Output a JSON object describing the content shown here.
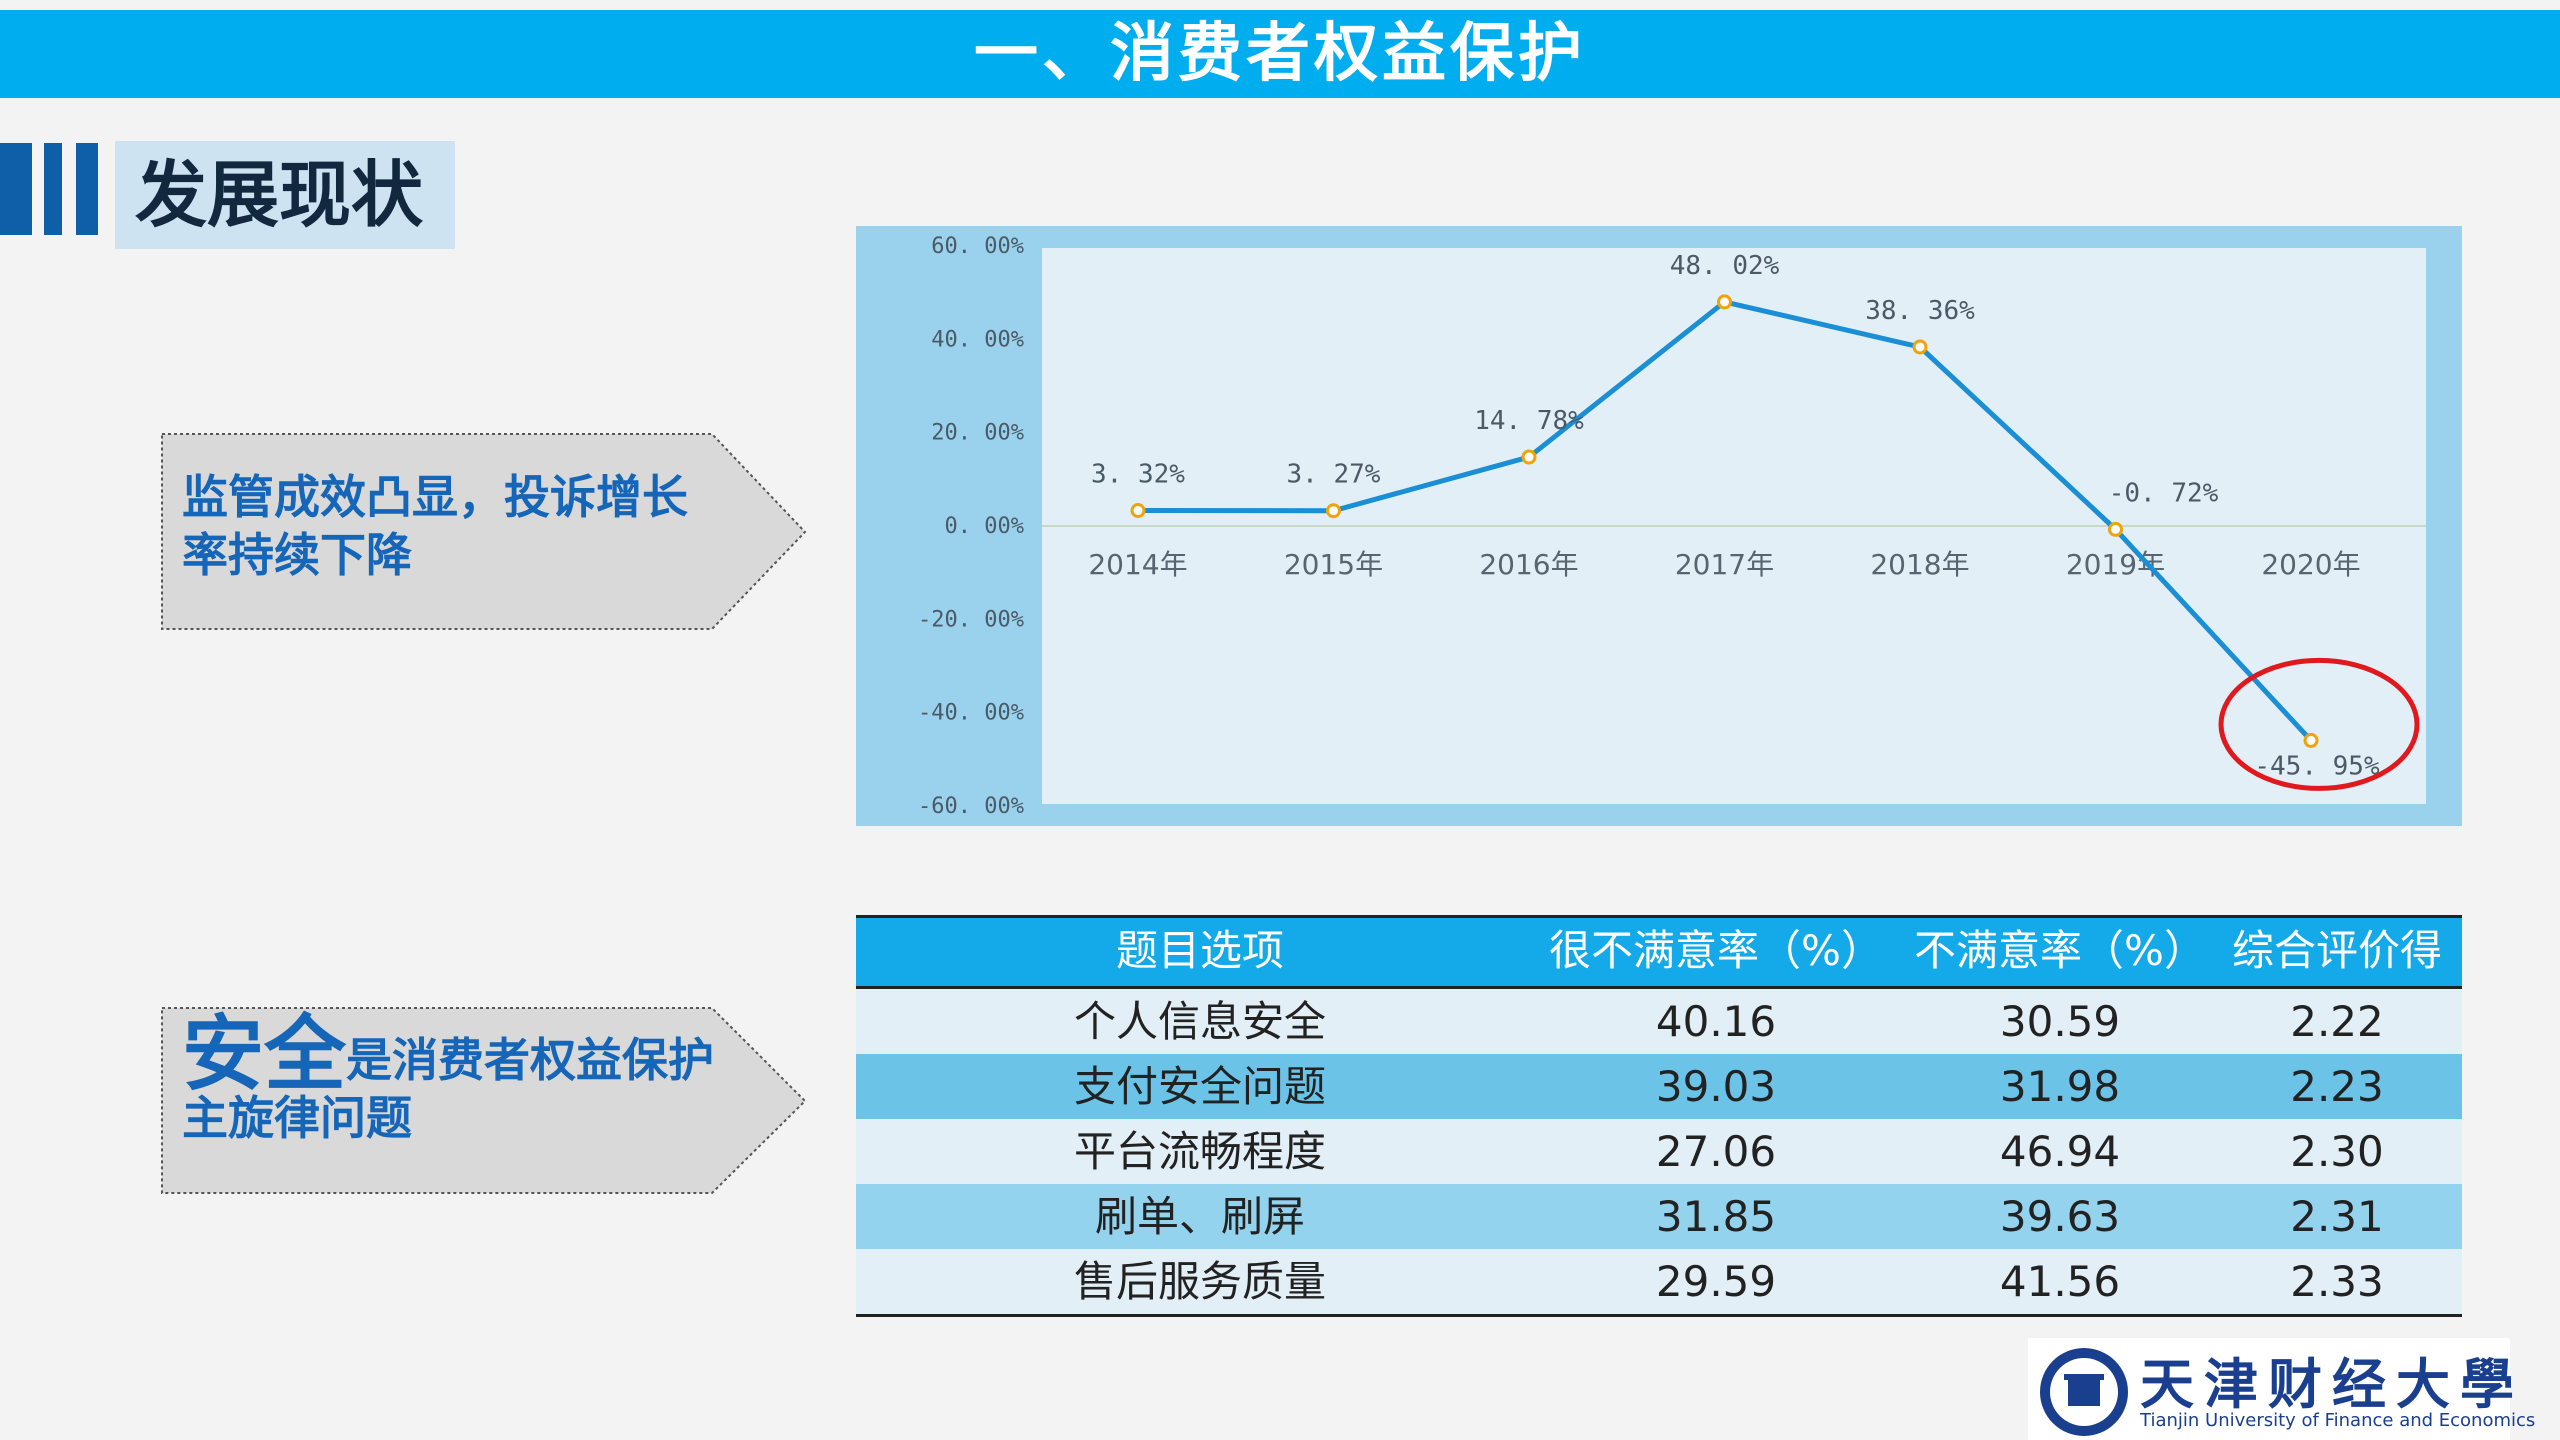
{
  "header": {
    "title": "一、消费者权益保护"
  },
  "section": {
    "title": "发展现状"
  },
  "callouts": [
    {
      "line1": "监管成效凸显，投诉增长",
      "line2": "率持续下降"
    },
    {
      "emphasis": "安全",
      "rest": "是消费者权益保护",
      "line2": "主旋律问题"
    }
  ],
  "chart_data": {
    "type": "line",
    "categories": [
      "2014年",
      "2015年",
      "2016年",
      "2017年",
      "2018年",
      "2019年",
      "2020年"
    ],
    "series": [
      {
        "values": [
          3.32,
          3.27,
          14.78,
          48.02,
          38.36,
          -0.72,
          -45.95
        ]
      }
    ],
    "data_labels": [
      "3. 32%",
      "3. 27%",
      "14. 78%",
      "48. 02%",
      "38. 36%",
      "-0. 72%",
      "-45. 95%"
    ],
    "y_ticks": [
      60,
      40,
      20,
      0,
      -20,
      -40,
      -60
    ],
    "y_tick_labels": [
      "60. 00%",
      "40. 00%",
      "20. 00%",
      "0. 00%",
      "-20. 00%",
      "-40. 00%",
      "-60. 00%"
    ],
    "ylim": [
      -60,
      60
    ],
    "grid": false,
    "highlight_index": 6,
    "colors": {
      "line": "#1a8fd6",
      "marker_edge": "#f0a30a",
      "highlight": "#e0191f",
      "outer_bg": "#9ad2ee",
      "plot_bg": "#e2eff6"
    }
  },
  "table": {
    "headers": [
      "题目选项",
      "很不满意率（%）",
      "不满意率（%）",
      "综合评价得分"
    ],
    "rows": [
      [
        "个人信息安全",
        "40.16",
        "30.59",
        "2.22"
      ],
      [
        "支付安全问题",
        "39.03",
        "31.98",
        "2.23"
      ],
      [
        "平台流畅程度",
        "27.06",
        "46.94",
        "2.30"
      ],
      [
        "刷单、刷屏",
        "31.85",
        "39.63",
        "2.31"
      ],
      [
        "售后服务质量",
        "29.59",
        "41.56",
        "2.33"
      ]
    ],
    "row_colors": [
      "#e2eff6",
      "#6cc3e8",
      "#e2eff6",
      "#94d3ee",
      "#e2eff6"
    ],
    "header_color": "#14a9e8"
  },
  "logo": {
    "name_cn": "天津财经大學",
    "name_en": "Tianjin University of Finance and Economics"
  }
}
